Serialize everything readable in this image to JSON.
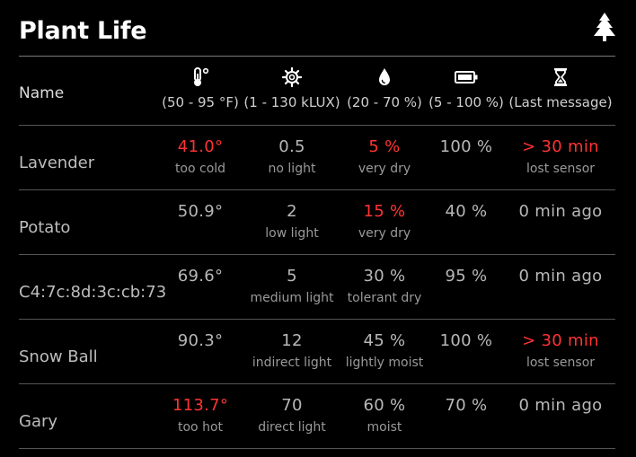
{
  "page": {
    "title": "Plant Life",
    "logo_icon": "pine-tree-icon"
  },
  "colors": {
    "background": "#000000",
    "alert": "#ff3333",
    "text": "#b8b8b8",
    "title": "#ffffff"
  },
  "header": {
    "name_label": "Name",
    "columns": [
      {
        "icon": "thermometer-icon",
        "range": "(50 - 95 °F)"
      },
      {
        "icon": "sun-gear-icon",
        "range": "(1 - 130 kLUX)"
      },
      {
        "icon": "water-drop-icon",
        "range": "(20 - 70 %)"
      },
      {
        "icon": "battery-icon",
        "range": "(5 - 100 %)"
      },
      {
        "icon": "hourglass-icon",
        "range": "(Last message)"
      }
    ]
  },
  "plants": [
    {
      "name": "Lavender",
      "temp": {
        "value": "41.0°",
        "status": "too cold",
        "alert": true
      },
      "light": {
        "value": "0.5",
        "status": "no light",
        "alert": false
      },
      "moisture": {
        "value": "5 %",
        "status": "very dry",
        "alert": true
      },
      "battery": {
        "value": "100 %"
      },
      "last": {
        "value": "> 30 min",
        "status": "lost sensor",
        "alert": true
      }
    },
    {
      "name": "Potato",
      "temp": {
        "value": "50.9°",
        "status": "",
        "alert": false
      },
      "light": {
        "value": "2",
        "status": "low light",
        "alert": false
      },
      "moisture": {
        "value": "15 %",
        "status": "very dry",
        "alert": true
      },
      "battery": {
        "value": "40 %"
      },
      "last": {
        "value": "0 min ago",
        "status": "",
        "alert": false
      }
    },
    {
      "name": "C4:7c:8d:3c:cb:73",
      "temp": {
        "value": "69.6°",
        "status": "",
        "alert": false
      },
      "light": {
        "value": "5",
        "status": "medium light",
        "alert": false
      },
      "moisture": {
        "value": "30 %",
        "status": "tolerant dry",
        "alert": false
      },
      "battery": {
        "value": "95 %"
      },
      "last": {
        "value": "0 min ago",
        "status": "",
        "alert": false
      }
    },
    {
      "name": "Snow Ball",
      "temp": {
        "value": "90.3°",
        "status": "",
        "alert": false
      },
      "light": {
        "value": "12",
        "status": "indirect light",
        "alert": false
      },
      "moisture": {
        "value": "45 %",
        "status": "lightly moist",
        "alert": false
      },
      "battery": {
        "value": "100 %"
      },
      "last": {
        "value": "> 30 min",
        "status": "lost sensor",
        "alert": true
      }
    },
    {
      "name": "Gary",
      "temp": {
        "value": "113.7°",
        "status": "too hot",
        "alert": true
      },
      "light": {
        "value": "70",
        "status": "direct light",
        "alert": false
      },
      "moisture": {
        "value": "60 %",
        "status": "moist",
        "alert": false
      },
      "battery": {
        "value": "70 %"
      },
      "last": {
        "value": "0 min ago",
        "status": "",
        "alert": false
      }
    }
  ]
}
